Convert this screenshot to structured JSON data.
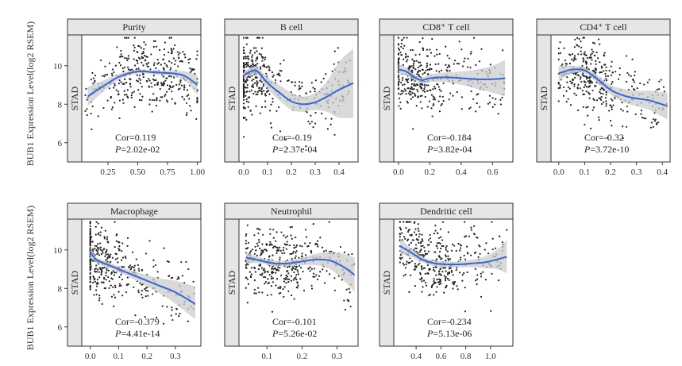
{
  "figure": {
    "ylabel": "BUB1 Expression Level(log2 RSEM)",
    "side_label": "STAD"
  },
  "chart_data": [
    {
      "type": "scatter",
      "title": "Purity",
      "xlabel": "",
      "ylabel": "BUB1 Expression Level(log2 RSEM)",
      "xlim": [
        0.03,
        1.03
      ],
      "ylim": [
        5.0,
        11.6
      ],
      "xticks": [
        "0.25",
        "0.50",
        "0.75",
        "1.00"
      ],
      "xtick_values": [
        0.25,
        0.5,
        0.75,
        1.0
      ],
      "yticks": [
        "6",
        "8",
        "10"
      ],
      "ytick_values": [
        6,
        8,
        10
      ],
      "annotation": {
        "cor_label": "Cor=",
        "cor": "0.119",
        "p_label": "P",
        "p": "=2.02e-02"
      },
      "fit": {
        "x": [
          0.08,
          0.2,
          0.35,
          0.5,
          0.65,
          0.8,
          0.9,
          1.0
        ],
        "y": [
          8.4,
          8.9,
          9.45,
          9.7,
          9.65,
          9.6,
          9.45,
          9.0
        ]
      },
      "band": {
        "x": [
          0.08,
          0.2,
          0.35,
          0.5,
          0.65,
          0.8,
          0.9,
          1.0
        ],
        "lower": [
          7.9,
          8.6,
          9.3,
          9.6,
          9.55,
          9.45,
          9.2,
          8.5
        ],
        "upper": [
          8.9,
          9.2,
          9.6,
          9.8,
          9.75,
          9.75,
          9.7,
          9.5
        ]
      },
      "scatter": {
        "n": 380,
        "x_min": 0.06,
        "x_max": 1.0,
        "x_center": 0.62,
        "x_spread": 0.25,
        "y_mean": 9.3,
        "y_sd": 1.1,
        "seed": 11
      }
    },
    {
      "type": "scatter",
      "title": "B cell",
      "xlabel": "",
      "ylabel": "",
      "xlim": [
        -0.02,
        0.48
      ],
      "ylim": [
        5.0,
        11.6
      ],
      "xticks": [
        "0.0",
        "0.1",
        "0.2",
        "0.3",
        "0.4"
      ],
      "xtick_values": [
        0.0,
        0.1,
        0.2,
        0.3,
        0.4
      ],
      "yticks": [],
      "ytick_values": [],
      "annotation": {
        "cor_label": "Cor=",
        "cor": "-0.19",
        "p_label": "P",
        "p": "=2.37e-04"
      },
      "fit": {
        "x": [
          0.0,
          0.05,
          0.1,
          0.15,
          0.2,
          0.25,
          0.3,
          0.35,
          0.4,
          0.46
        ],
        "y": [
          9.5,
          9.75,
          9.1,
          8.6,
          8.15,
          8.0,
          8.1,
          8.4,
          8.75,
          9.1
        ]
      },
      "band": {
        "x": [
          0.0,
          0.05,
          0.1,
          0.15,
          0.2,
          0.25,
          0.3,
          0.35,
          0.4,
          0.46
        ],
        "lower": [
          9.3,
          9.55,
          8.8,
          8.2,
          7.7,
          7.6,
          7.7,
          7.6,
          7.3,
          7.3
        ],
        "upper": [
          9.7,
          9.95,
          9.4,
          9.0,
          8.6,
          8.4,
          8.6,
          9.2,
          10.2,
          10.9
        ]
      },
      "scatter": {
        "n": 400,
        "x_min": 0.0,
        "x_max": 0.45,
        "x_center": 0.03,
        "x_spread": 0.05,
        "y_mean": 9.4,
        "y_sd": 1.1,
        "seed": 23
      }
    },
    {
      "type": "scatter",
      "title": "CD8⁺ T cell",
      "xlabel": "",
      "ylabel": "",
      "xlim": [
        -0.03,
        0.73
      ],
      "ylim": [
        5.0,
        11.6
      ],
      "xticks": [
        "0.0",
        "0.2",
        "0.4",
        "0.6"
      ],
      "xtick_values": [
        0.0,
        0.2,
        0.4,
        0.6
      ],
      "yticks": [],
      "ytick_values": [],
      "annotation": {
        "cor_label": "Cor=",
        "cor": "-0.184",
        "p_label": "P",
        "p": "=3.82e-04"
      },
      "fit": {
        "x": [
          0.0,
          0.05,
          0.1,
          0.15,
          0.2,
          0.3,
          0.4,
          0.5,
          0.6,
          0.68
        ],
        "y": [
          9.8,
          9.7,
          9.4,
          9.25,
          9.35,
          9.4,
          9.35,
          9.3,
          9.3,
          9.35
        ]
      },
      "band": {
        "x": [
          0.0,
          0.05,
          0.1,
          0.15,
          0.2,
          0.3,
          0.4,
          0.5,
          0.6,
          0.68
        ],
        "lower": [
          9.5,
          9.5,
          9.25,
          9.1,
          9.15,
          9.15,
          9.0,
          8.8,
          8.6,
          8.4
        ],
        "upper": [
          10.1,
          9.9,
          9.55,
          9.4,
          9.55,
          9.65,
          9.7,
          9.8,
          10.0,
          10.3
        ]
      },
      "scatter": {
        "n": 380,
        "x_min": 0.0,
        "x_max": 0.68,
        "x_center": 0.1,
        "x_spread": 0.1,
        "y_mean": 9.4,
        "y_sd": 1.1,
        "seed": 37
      }
    },
    {
      "type": "scatter",
      "title": "CD4⁺ T cell",
      "xlabel": "",
      "ylabel": "",
      "xlim": [
        -0.03,
        0.43
      ],
      "ylim": [
        5.0,
        11.6
      ],
      "xticks": [
        "0.0",
        "0.1",
        "0.2",
        "0.3",
        "0.4"
      ],
      "xtick_values": [
        0.0,
        0.1,
        0.2,
        0.3,
        0.4
      ],
      "yticks": [],
      "ytick_values": [],
      "annotation": {
        "cor_label": "Cor=",
        "cor": "-0.32",
        "p_label": "P",
        "p": "=3.72e-10"
      },
      "fit": {
        "x": [
          0.0,
          0.05,
          0.1,
          0.15,
          0.2,
          0.25,
          0.3,
          0.35,
          0.42
        ],
        "y": [
          9.6,
          9.8,
          9.75,
          9.3,
          8.75,
          8.45,
          8.3,
          8.2,
          7.9
        ]
      },
      "band": {
        "x": [
          0.0,
          0.05,
          0.1,
          0.15,
          0.2,
          0.25,
          0.3,
          0.35,
          0.42
        ],
        "lower": [
          9.2,
          9.6,
          9.6,
          9.1,
          8.5,
          8.1,
          7.9,
          7.7,
          7.2
        ],
        "upper": [
          10.0,
          10.0,
          9.9,
          9.5,
          9.0,
          8.8,
          8.7,
          8.7,
          8.6
        ]
      },
      "scatter": {
        "n": 380,
        "x_min": 0.0,
        "x_max": 0.42,
        "x_center": 0.12,
        "x_spread": 0.07,
        "y_mean": 9.2,
        "y_sd": 1.1,
        "seed": 51
      }
    },
    {
      "type": "scatter",
      "title": "Macrophage",
      "xlabel": "",
      "ylabel": "BUB1 Expression Level(log2 RSEM)",
      "xlim": [
        -0.03,
        0.39
      ],
      "ylim": [
        5.0,
        11.6
      ],
      "xticks": [
        "0.0",
        "0.1",
        "0.2",
        "0.3"
      ],
      "xtick_values": [
        0.0,
        0.1,
        0.2,
        0.3
      ],
      "yticks": [
        "6",
        "8",
        "10"
      ],
      "ytick_values": [
        6,
        8,
        10
      ],
      "annotation": {
        "cor_label": "Cor=",
        "cor": "-0.379",
        "p_label": "P",
        "p": "=4.41e-14"
      },
      "fit": {
        "x": [
          0.0,
          0.02,
          0.05,
          0.1,
          0.15,
          0.2,
          0.25,
          0.3,
          0.37
        ],
        "y": [
          9.9,
          9.5,
          9.3,
          9.0,
          8.7,
          8.4,
          8.1,
          7.8,
          7.2
        ]
      },
      "band": {
        "x": [
          0.0,
          0.02,
          0.05,
          0.1,
          0.15,
          0.2,
          0.25,
          0.3,
          0.37
        ],
        "lower": [
          9.6,
          9.35,
          9.15,
          8.85,
          8.5,
          8.1,
          7.7,
          7.2,
          6.4
        ],
        "upper": [
          10.2,
          9.65,
          9.45,
          9.15,
          8.9,
          8.7,
          8.5,
          8.4,
          8.1
        ]
      },
      "scatter": {
        "n": 400,
        "x_min": 0.0,
        "x_max": 0.37,
        "x_center": 0.02,
        "x_spread": 0.07,
        "y_mean": 9.2,
        "y_sd": 1.1,
        "seed": 67
      }
    },
    {
      "type": "scatter",
      "title": "Neutrophil",
      "xlabel": "",
      "ylabel": "",
      "xlim": [
        0.02,
        0.36
      ],
      "ylim": [
        5.0,
        11.6
      ],
      "xticks": [
        "0.1",
        "0.2",
        "0.3"
      ],
      "xtick_values": [
        0.1,
        0.2,
        0.3
      ],
      "yticks": [],
      "ytick_values": [],
      "annotation": {
        "cor_label": "Cor=",
        "cor": "-0.101",
        "p_label": "P",
        "p": "=5.26e-02"
      },
      "fit": {
        "x": [
          0.04,
          0.08,
          0.12,
          0.16,
          0.2,
          0.24,
          0.28,
          0.32,
          0.35
        ],
        "y": [
          9.6,
          9.45,
          9.3,
          9.3,
          9.4,
          9.5,
          9.45,
          9.1,
          8.7
        ]
      },
      "band": {
        "x": [
          0.04,
          0.08,
          0.12,
          0.16,
          0.2,
          0.24,
          0.28,
          0.32,
          0.35
        ],
        "lower": [
          9.3,
          9.3,
          9.15,
          9.15,
          9.2,
          9.2,
          9.0,
          8.4,
          7.8
        ],
        "upper": [
          9.9,
          9.6,
          9.45,
          9.45,
          9.6,
          9.8,
          9.9,
          9.8,
          9.6
        ]
      },
      "scatter": {
        "n": 380,
        "x_min": 0.04,
        "x_max": 0.35,
        "x_center": 0.12,
        "x_spread": 0.06,
        "y_mean": 9.3,
        "y_sd": 1.1,
        "seed": 79
      }
    },
    {
      "type": "scatter",
      "title": "Dendritic cell",
      "xlabel": "",
      "ylabel": "",
      "xlim": [
        0.22,
        1.18
      ],
      "ylim": [
        5.0,
        11.6
      ],
      "xticks": [
        "0.4",
        "0.6",
        "0.8",
        "1.0"
      ],
      "xtick_values": [
        0.4,
        0.6,
        0.8,
        1.0
      ],
      "yticks": [],
      "ytick_values": [],
      "annotation": {
        "cor_label": "Cor=",
        "cor": "-0.234",
        "p_label": "P",
        "p": "=5.13e-06"
      },
      "fit": {
        "x": [
          0.27,
          0.35,
          0.45,
          0.55,
          0.65,
          0.75,
          0.85,
          0.95,
          1.05,
          1.13
        ],
        "y": [
          10.2,
          9.9,
          9.5,
          9.3,
          9.25,
          9.25,
          9.3,
          9.35,
          9.5,
          9.65
        ]
      },
      "band": {
        "x": [
          0.27,
          0.35,
          0.45,
          0.55,
          0.65,
          0.75,
          0.85,
          0.95,
          1.05,
          1.13
        ],
        "lower": [
          9.8,
          9.65,
          9.35,
          9.15,
          9.1,
          9.1,
          9.1,
          9.05,
          9.0,
          8.8
        ],
        "upper": [
          10.6,
          10.15,
          9.65,
          9.45,
          9.4,
          9.4,
          9.5,
          9.65,
          10.0,
          10.5
        ]
      },
      "scatter": {
        "n": 380,
        "x_min": 0.27,
        "x_max": 1.13,
        "x_center": 0.5,
        "x_spread": 0.15,
        "y_mean": 9.3,
        "y_sd": 1.1,
        "seed": 91
      }
    }
  ],
  "colors": {
    "fit_line": "#3366dd",
    "band": "#cccccc",
    "point": "#222222",
    "strip_fill": "#e6e6e6",
    "strip_border": "#333333",
    "axis": "#333333",
    "tick_label": "#333333"
  }
}
